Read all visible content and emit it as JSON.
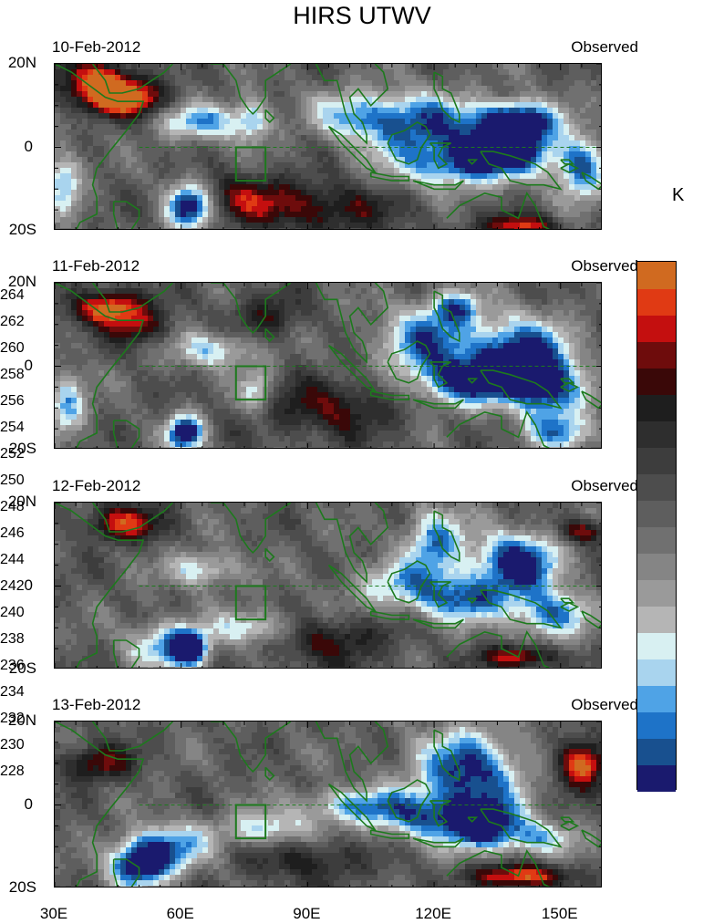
{
  "chart_data": {
    "type": "heatmap",
    "title": "HIRS UTWV",
    "units": "K",
    "colorbar": {
      "levels": [
        228,
        230,
        232,
        234,
        236,
        238,
        240,
        242,
        244,
        246,
        248,
        250,
        252,
        254,
        256,
        258,
        260,
        262,
        264
      ],
      "colors": [
        "#1a1a6e",
        "#18508f",
        "#1e73c8",
        "#4fa3e6",
        "#a9d4ee",
        "#d8f0f2",
        "#b5b5b5",
        "#9a9a9a",
        "#858585",
        "#707070",
        "#5e5e5e",
        "#4d4d4d",
        "#3d3d3d",
        "#2e2e2e",
        "#1e1e1e",
        "#3a0808",
        "#6e0c0c",
        "#c40f0f",
        "#e03a14",
        "#d06a20"
      ]
    },
    "x_axis": {
      "range": [
        30,
        160
      ],
      "ticks": [
        30,
        60,
        90,
        120,
        150
      ],
      "tick_labels": [
        "30E",
        "60E",
        "90E",
        "120E",
        "150E"
      ]
    },
    "y_axis": {
      "range": [
        -20,
        20
      ],
      "ticks": [
        20,
        0,
        -20
      ],
      "tick_labels": [
        "20N",
        "0",
        "20S"
      ]
    },
    "panels": [
      {
        "date": "10-Feb-2012",
        "tag": "Observed",
        "blobs": [
          {
            "lon": 45,
            "lat": 12,
            "sx": 7,
            "sy": 3,
            "a": 24
          },
          {
            "lon": 40,
            "lat": 17,
            "sx": 6,
            "sy": 3,
            "a": 14
          },
          {
            "lon": 62,
            "lat": -14,
            "sx": 4,
            "sy": 4,
            "a": -24
          },
          {
            "lon": 138,
            "lat": 1,
            "sx": 8,
            "sy": 5,
            "a": -24
          },
          {
            "lon": 140,
            "lat": 7,
            "sx": 6,
            "sy": 3,
            "a": -16
          },
          {
            "lon": 115,
            "lat": 6,
            "sx": 10,
            "sy": 5,
            "a": -18
          },
          {
            "lon": 124,
            "lat": -4,
            "sx": 10,
            "sy": 4,
            "a": -16
          },
          {
            "lon": 155,
            "lat": -5,
            "sx": 4,
            "sy": 5,
            "a": -18
          },
          {
            "lon": 65,
            "lat": 6,
            "sx": 7,
            "sy": 3,
            "a": -14
          },
          {
            "lon": 77,
            "lat": 7,
            "sx": 3,
            "sy": 4,
            "a": -12
          },
          {
            "lon": 32,
            "lat": -8,
            "sx": 3,
            "sy": 5,
            "a": -14
          },
          {
            "lon": 100,
            "lat": 8,
            "sx": 6,
            "sy": 4,
            "a": -10
          },
          {
            "lon": 140,
            "lat": -19,
            "sx": 6,
            "sy": 2,
            "a": 16
          },
          {
            "lon": 75,
            "lat": -12,
            "sx": 10,
            "sy": 4,
            "a": 10
          },
          {
            "lon": 95,
            "lat": -15,
            "sx": 12,
            "sy": 4,
            "a": 10
          }
        ]
      },
      {
        "date": "11-Feb-2012",
        "tag": "Observed",
        "blobs": [
          {
            "lon": 43,
            "lat": 14,
            "sx": 6,
            "sy": 3,
            "a": 20
          },
          {
            "lon": 50,
            "lat": 9,
            "sx": 5,
            "sy": 3,
            "a": 10
          },
          {
            "lon": 61,
            "lat": -16,
            "sx": 3,
            "sy": 3,
            "a": -24
          },
          {
            "lon": 140,
            "lat": 3,
            "sx": 8,
            "sy": 6,
            "a": -22
          },
          {
            "lon": 148,
            "lat": -6,
            "sx": 6,
            "sy": 5,
            "a": -18
          },
          {
            "lon": 128,
            "lat": -4,
            "sx": 9,
            "sy": 4,
            "a": -18
          },
          {
            "lon": 118,
            "lat": 6,
            "sx": 8,
            "sy": 6,
            "a": -16
          },
          {
            "lon": 125,
            "lat": 14,
            "sx": 4,
            "sy": 3,
            "a": -14
          },
          {
            "lon": 68,
            "lat": 4,
            "sx": 7,
            "sy": 3,
            "a": -12
          },
          {
            "lon": 78,
            "lat": -6,
            "sx": 3,
            "sy": 4,
            "a": -12
          },
          {
            "lon": 33,
            "lat": -9,
            "sx": 3,
            "sy": 5,
            "a": -14
          },
          {
            "lon": 150,
            "lat": -16,
            "sx": 6,
            "sy": 3,
            "a": -12
          },
          {
            "lon": 95,
            "lat": -10,
            "sx": 12,
            "sy": 5,
            "a": 10
          },
          {
            "lon": 80,
            "lat": 12,
            "sx": 6,
            "sy": 4,
            "a": 8
          }
        ]
      },
      {
        "date": "12-Feb-2012",
        "tag": "Observed",
        "blobs": [
          {
            "lon": 46,
            "lat": 15,
            "sx": 6,
            "sy": 3,
            "a": 16
          },
          {
            "lon": 62,
            "lat": -15,
            "sx": 3,
            "sy": 3,
            "a": -24
          },
          {
            "lon": 56,
            "lat": -14,
            "sx": 6,
            "sy": 4,
            "a": -14
          },
          {
            "lon": 140,
            "lat": 6,
            "sx": 7,
            "sy": 5,
            "a": -22
          },
          {
            "lon": 148,
            "lat": -7,
            "sx": 6,
            "sy": 4,
            "a": -16
          },
          {
            "lon": 120,
            "lat": 10,
            "sx": 5,
            "sy": 6,
            "a": -16
          },
          {
            "lon": 128,
            "lat": -3,
            "sx": 9,
            "sy": 4,
            "a": -16
          },
          {
            "lon": 65,
            "lat": 4,
            "sx": 6,
            "sy": 3,
            "a": -12
          },
          {
            "lon": 78,
            "lat": -10,
            "sx": 7,
            "sy": 3,
            "a": -12
          },
          {
            "lon": 110,
            "lat": 0,
            "sx": 8,
            "sy": 4,
            "a": -10
          },
          {
            "lon": 95,
            "lat": -13,
            "sx": 10,
            "sy": 4,
            "a": 10
          },
          {
            "lon": 155,
            "lat": 13,
            "sx": 4,
            "sy": 2,
            "a": 14
          },
          {
            "lon": 140,
            "lat": -17,
            "sx": 6,
            "sy": 2,
            "a": 16
          }
        ]
      },
      {
        "date": "13-Feb-2012",
        "tag": "Observed",
        "blobs": [
          {
            "lon": 50,
            "lat": -14,
            "sx": 5,
            "sy": 4,
            "a": -24
          },
          {
            "lon": 58,
            "lat": -10,
            "sx": 6,
            "sy": 4,
            "a": -14
          },
          {
            "lon": 128,
            "lat": 8,
            "sx": 9,
            "sy": 7,
            "a": -20
          },
          {
            "lon": 132,
            "lat": -5,
            "sx": 6,
            "sy": 4,
            "a": -20
          },
          {
            "lon": 100,
            "lat": 0,
            "sx": 9,
            "sy": 3,
            "a": -12
          },
          {
            "lon": 80,
            "lat": -6,
            "sx": 8,
            "sy": 3,
            "a": -12
          },
          {
            "lon": 118,
            "lat": -3,
            "sx": 10,
            "sy": 4,
            "a": -14
          },
          {
            "lon": 145,
            "lat": -8,
            "sx": 6,
            "sy": 3,
            "a": -12
          },
          {
            "lon": 40,
            "lat": 10,
            "sx": 6,
            "sy": 3,
            "a": 12
          },
          {
            "lon": 155,
            "lat": 10,
            "sx": 4,
            "sy": 4,
            "a": 20
          },
          {
            "lon": 140,
            "lat": -17,
            "sx": 8,
            "sy": 2,
            "a": 18
          },
          {
            "lon": 90,
            "lat": -13,
            "sx": 10,
            "sy": 4,
            "a": 8
          }
        ]
      }
    ]
  }
}
